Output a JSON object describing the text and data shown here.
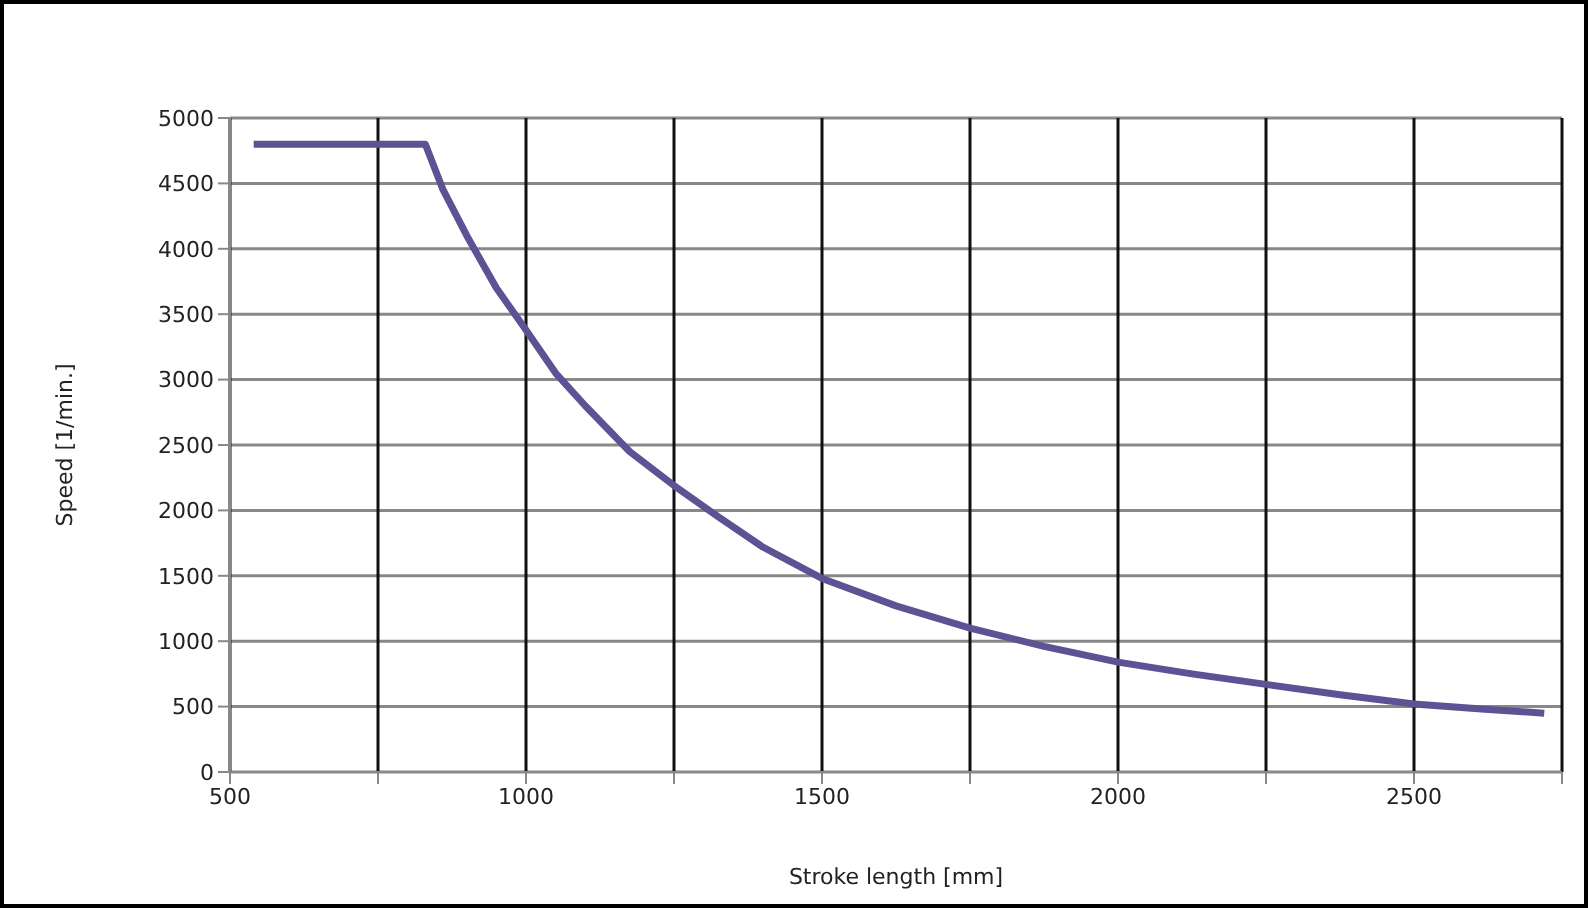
{
  "chart_data": {
    "type": "line",
    "xlabel": "Stroke length [mm]",
    "ylabel": "Speed [1/min.]",
    "x": [
      540,
      830,
      860,
      900,
      950,
      1000,
      1050,
      1100,
      1175,
      1250,
      1325,
      1400,
      1500,
      1625,
      1750,
      1875,
      2000,
      2125,
      2250,
      2375,
      2500,
      2620,
      2720
    ],
    "series": [
      {
        "color": "#5b5394",
        "values": [
          4800,
          4800,
          4450,
          4100,
          3700,
          3380,
          3050,
          2800,
          2450,
          2190,
          1950,
          1720,
          1480,
          1270,
          1100,
          960,
          840,
          750,
          670,
          590,
          520,
          480,
          450
        ]
      }
    ],
    "xlim": [
      500,
      2750
    ],
    "xticks": [
      500,
      {
        "value": 750,
        "label": null
      },
      1000,
      {
        "value": 1250,
        "label": null
      },
      1500,
      {
        "value": 1750,
        "label": null
      },
      2000,
      {
        "value": 2250,
        "label": null
      },
      2500,
      {
        "value": 2750,
        "label": null
      }
    ],
    "ylim": [
      0,
      5000
    ],
    "yticks": [
      0,
      500,
      1000,
      1500,
      2000,
      2500,
      3000,
      3500,
      4000,
      4500,
      5000
    ],
    "grid": true,
    "marker": "none",
    "line_style": "solid"
  }
}
